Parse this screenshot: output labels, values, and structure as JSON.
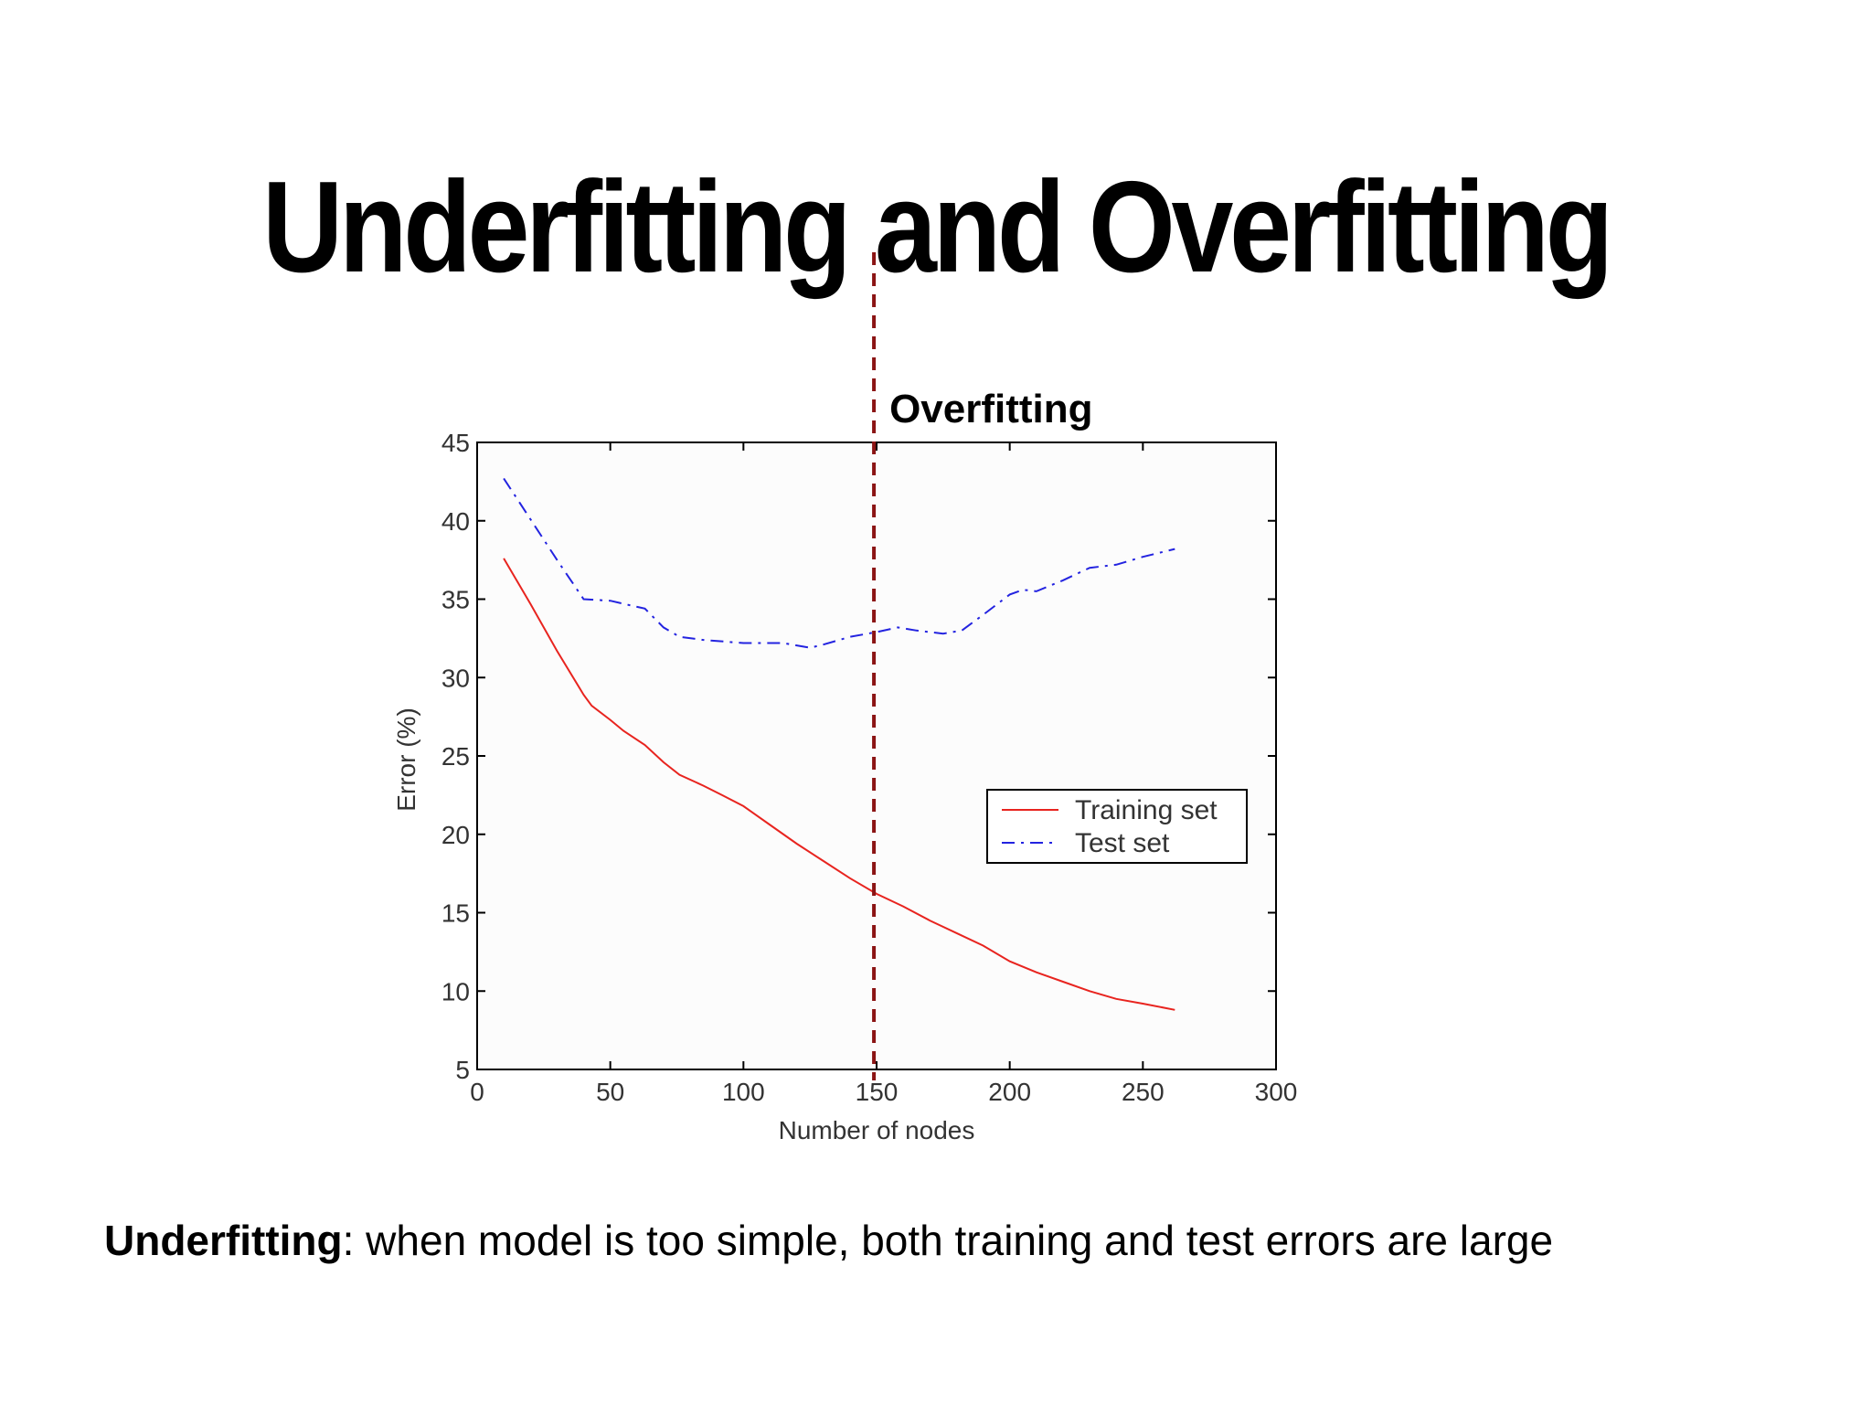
{
  "slide": {
    "title": "Underfitting and Overfitting",
    "caption_term": "Underfitting",
    "caption_text": ": when model is too simple, both training and test errors are large"
  },
  "chart_data": {
    "type": "line",
    "xlabel": "Number of nodes",
    "ylabel": "Error (%)",
    "xlim": [
      0,
      300
    ],
    "ylim": [
      5,
      45
    ],
    "xticks": [
      0,
      50,
      100,
      150,
      200,
      250,
      300
    ],
    "yticks": [
      5,
      10,
      15,
      20,
      25,
      30,
      35,
      40,
      45
    ],
    "grid": false,
    "legend_position": "center-right",
    "series": [
      {
        "name": "Training set",
        "color": "#e8241f",
        "dash": "solid",
        "x": [
          10,
          20,
          30,
          40,
          43,
          50,
          55,
          63,
          70,
          76,
          85,
          92,
          100,
          110,
          120,
          130,
          140,
          150,
          160,
          170,
          180,
          190,
          200,
          210,
          220,
          230,
          240,
          250,
          262
        ],
        "y": [
          37.6,
          34.7,
          31.7,
          28.9,
          28.2,
          27.3,
          26.6,
          25.7,
          24.6,
          23.8,
          23.1,
          22.5,
          21.8,
          20.6,
          19.4,
          18.3,
          17.2,
          16.2,
          15.4,
          14.5,
          13.7,
          12.9,
          11.9,
          11.2,
          10.6,
          10.0,
          9.5,
          9.2,
          8.8
        ]
      },
      {
        "name": "Test set",
        "color": "#2323e0",
        "dash": "dashdot",
        "x": [
          10,
          20,
          30,
          40,
          50,
          55,
          63,
          70,
          76,
          85,
          100,
          115,
          125,
          130,
          140,
          150,
          158,
          165,
          175,
          182,
          190,
          200,
          205,
          210,
          220,
          230,
          240,
          250,
          262
        ],
        "y": [
          42.7,
          40.1,
          37.5,
          35.0,
          34.9,
          34.7,
          34.4,
          33.2,
          32.6,
          32.4,
          32.2,
          32.2,
          31.9,
          32.1,
          32.6,
          32.9,
          33.2,
          33.0,
          32.8,
          33.0,
          34.0,
          35.3,
          35.6,
          35.5,
          36.2,
          37.0,
          37.2,
          37.7,
          38.2
        ]
      }
    ],
    "annotation": {
      "label": "Overfitting",
      "x": 149,
      "color": "#8b1414"
    }
  }
}
